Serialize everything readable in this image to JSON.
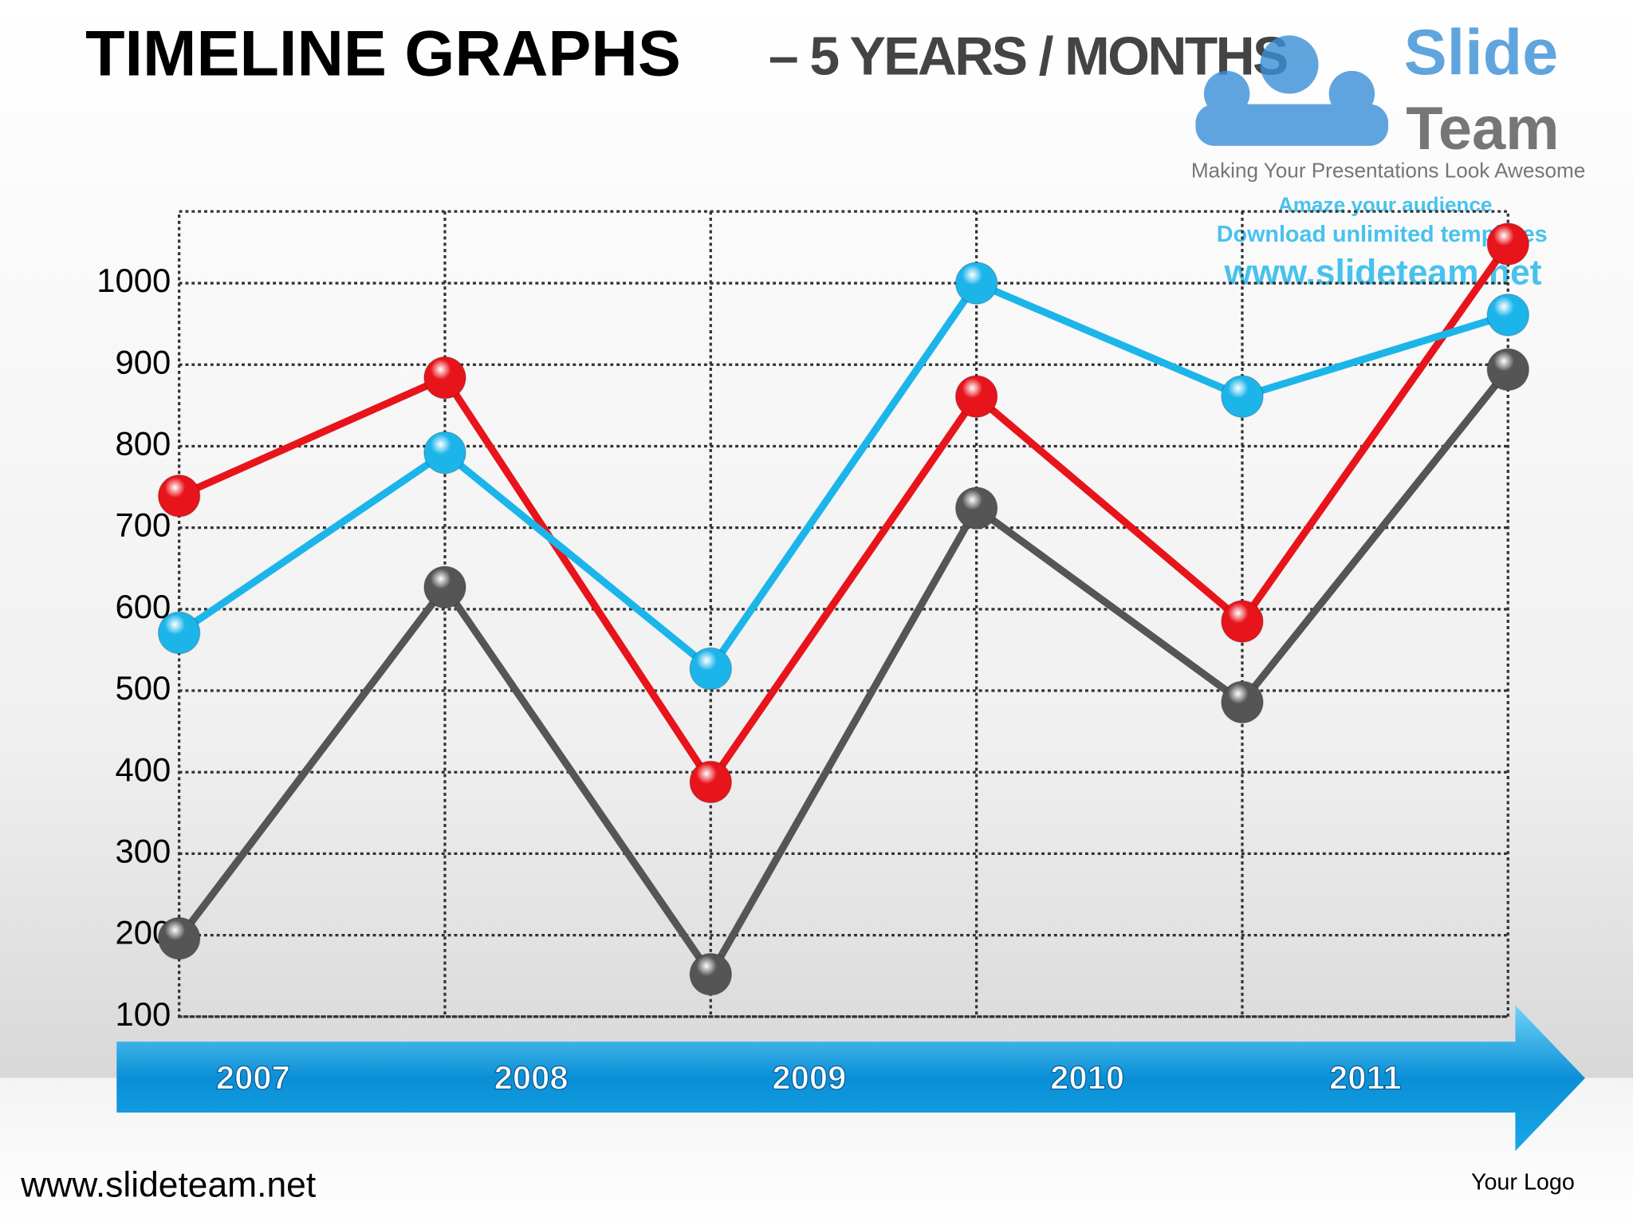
{
  "chart_data": {
    "type": "line",
    "title": "TIMELINE  GRAPHS",
    "subtitle": "– 5 YEARS / MONTHS",
    "timeline_labels": [
      "2007",
      "2008",
      "2009",
      "2010",
      "2011"
    ],
    "series": [
      {
        "color": "#e8141b",
        "values": [
          739,
          884,
          388,
          861,
          585,
          1048
        ]
      },
      {
        "color": "#1cb5ea",
        "values": [
          571,
          792,
          527,
          1000,
          861,
          961
        ]
      },
      {
        "color": "#555555",
        "values": [
          196,
          627,
          152,
          724,
          486,
          894
        ]
      }
    ],
    "ylim": [
      100,
      1088
    ],
    "yticks": [
      100,
      200,
      300,
      400,
      500,
      600,
      700,
      800,
      900,
      1000
    ],
    "grid": true
  },
  "branding": {
    "logo_word1": "Slide",
    "logo_word2": "Team",
    "tagline": "Making Your Presentations Look Awesome",
    "watermark": [
      "Amaze your audience",
      "Download unlimited templates",
      "www.slideteam.net"
    ],
    "footer_url": "www.slideteam.net",
    "footer_logo": "Your Logo"
  }
}
